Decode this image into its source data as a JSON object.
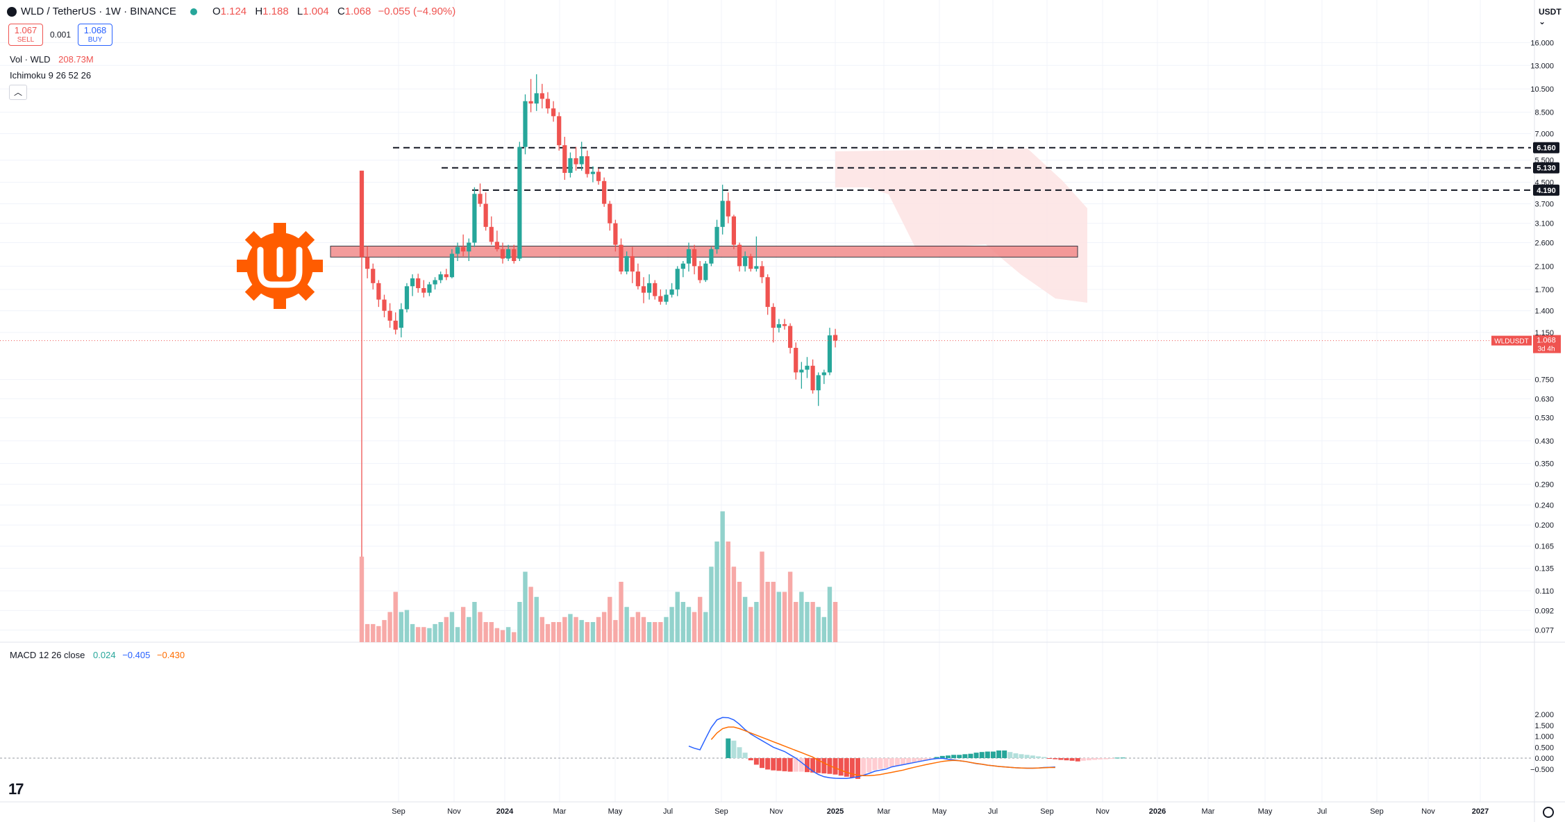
{
  "header": {
    "symbol": "WLD / TetherUS · 1W · BINANCE",
    "open_label": "O",
    "open": "1.124",
    "high_label": "H",
    "high": "1.188",
    "low_label": "L",
    "low": "1.004",
    "close_label": "C",
    "close": "1.068",
    "change": "−0.055 (−4.90%)"
  },
  "trade": {
    "sell_price": "1.067",
    "sell_label": "SELL",
    "spread": "0.001",
    "buy_price": "1.068",
    "buy_label": "BUY"
  },
  "indicators": {
    "volume_label": "Vol · WLD",
    "volume_value": "208.73M",
    "ichimoku_label": "Ichimoku 9 26 52 26",
    "macd_label": "MACD 12 26 close",
    "macd_hist": "0.024",
    "macd_line": "−0.405",
    "macd_signal": "−0.430"
  },
  "currency": "USDT",
  "colors": {
    "up": "#26a69a",
    "down": "#ef5350",
    "volume_up": "#92d2cc",
    "volume_down": "#f7a9a7",
    "macd_line": "#2962ff",
    "signal_line": "#ff6d00",
    "zone_fill": "#f28b8b",
    "cloud": "#fde3e3",
    "logo": "#ff5c00"
  },
  "icons": [
    "symbol-icon",
    "market-status-dot",
    "collapse-chevron-icon",
    "tradingview-logo-icon",
    "settings-gear-icon",
    "worldcoin-logo-icon"
  ],
  "chart_data": {
    "type": "candlestick",
    "symbol": "WLDUSDT",
    "last_price_label": "WLDUSDT",
    "last_price": "1.068",
    "countdown": "3d 4h",
    "scale": "log",
    "y_ticks": [
      "16.000",
      "13.000",
      "10.500",
      "8.500",
      "7.000",
      "5.500",
      "4.500",
      "3.700",
      "3.100",
      "2.600",
      "2.100",
      "1.700",
      "1.400",
      "1.150",
      "0.750",
      "0.630",
      "0.530",
      "0.430",
      "0.350",
      "0.290",
      "0.240",
      "0.200",
      "0.165",
      "0.135",
      "0.110",
      "0.092",
      "0.077"
    ],
    "x_ticks": [
      "Sep",
      "Nov",
      "2024",
      "Mar",
      "May",
      "Jul",
      "Sep",
      "Nov",
      "2025",
      "Mar",
      "May",
      "Jul",
      "Sep",
      "Nov",
      "2026",
      "Mar",
      "May",
      "Jul",
      "Sep",
      "Nov",
      "2027"
    ],
    "levels": [
      {
        "label": "6.160",
        "value": 6.16
      },
      {
        "label": "5.130",
        "value": 5.13
      },
      {
        "label": "4.190",
        "value": 4.19
      }
    ],
    "zone": {
      "low": 2.28,
      "high": 2.52
    },
    "candles": [
      [
        5.0,
        5.0,
        0.15,
        2.28
      ],
      [
        2.28,
        2.52,
        1.88,
        2.05
      ],
      [
        2.05,
        2.15,
        1.7,
        1.8
      ],
      [
        1.8,
        1.85,
        1.45,
        1.55
      ],
      [
        1.55,
        1.62,
        1.32,
        1.4
      ],
      [
        1.4,
        1.5,
        1.2,
        1.28
      ],
      [
        1.28,
        1.38,
        1.13,
        1.18
      ],
      [
        1.2,
        1.5,
        1.1,
        1.42
      ],
      [
        1.42,
        1.8,
        1.38,
        1.75
      ],
      [
        1.75,
        1.95,
        1.6,
        1.88
      ],
      [
        1.88,
        1.96,
        1.65,
        1.72
      ],
      [
        1.72,
        1.85,
        1.58,
        1.65
      ],
      [
        1.65,
        1.82,
        1.6,
        1.78
      ],
      [
        1.78,
        1.9,
        1.7,
        1.85
      ],
      [
        1.85,
        2.0,
        1.8,
        1.95
      ],
      [
        1.95,
        2.05,
        1.85,
        1.9
      ],
      [
        1.9,
        2.45,
        1.88,
        2.35
      ],
      [
        2.35,
        2.6,
        2.2,
        2.5
      ],
      [
        2.5,
        2.8,
        2.3,
        2.4
      ],
      [
        2.4,
        2.7,
        2.2,
        2.6
      ],
      [
        2.6,
        4.3,
        2.5,
        4.05
      ],
      [
        4.05,
        4.45,
        3.6,
        3.7
      ],
      [
        3.7,
        4.1,
        2.9,
        3.0
      ],
      [
        3.0,
        3.3,
        2.55,
        2.62
      ],
      [
        2.62,
        2.9,
        2.4,
        2.45
      ],
      [
        2.45,
        2.6,
        2.15,
        2.25
      ],
      [
        2.25,
        2.55,
        2.2,
        2.45
      ],
      [
        2.45,
        2.55,
        2.15,
        2.2
      ],
      [
        2.25,
        6.5,
        2.2,
        6.2
      ],
      [
        6.2,
        10.0,
        5.8,
        9.4
      ],
      [
        9.4,
        11.5,
        8.5,
        9.2
      ],
      [
        9.2,
        12.0,
        8.6,
        10.1
      ],
      [
        10.1,
        11.0,
        8.8,
        9.6
      ],
      [
        9.6,
        10.2,
        8.4,
        8.8
      ],
      [
        8.8,
        9.4,
        7.8,
        8.2
      ],
      [
        8.2,
        8.5,
        6.0,
        6.3
      ],
      [
        6.3,
        6.8,
        4.6,
        4.9
      ],
      [
        4.9,
        5.9,
        4.7,
        5.6
      ],
      [
        5.6,
        6.2,
        5.0,
        5.3
      ],
      [
        5.3,
        6.5,
        5.0,
        5.7
      ],
      [
        5.7,
        6.0,
        4.7,
        4.85
      ],
      [
        4.85,
        5.2,
        4.5,
        4.95
      ],
      [
        4.95,
        5.1,
        4.4,
        4.55
      ],
      [
        4.55,
        4.7,
        3.6,
        3.7
      ],
      [
        3.7,
        3.8,
        2.9,
        3.1
      ],
      [
        3.1,
        3.2,
        2.4,
        2.55
      ],
      [
        2.55,
        2.7,
        1.95,
        2.0
      ],
      [
        2.0,
        2.4,
        1.95,
        2.3
      ],
      [
        2.3,
        2.5,
        1.8,
        2.0
      ],
      [
        2.0,
        2.15,
        1.7,
        1.75
      ],
      [
        1.75,
        1.9,
        1.5,
        1.65
      ],
      [
        1.65,
        1.95,
        1.55,
        1.8
      ],
      [
        1.8,
        1.85,
        1.55,
        1.6
      ],
      [
        1.6,
        1.7,
        1.48,
        1.52
      ],
      [
        1.52,
        1.7,
        1.48,
        1.62
      ],
      [
        1.62,
        1.8,
        1.58,
        1.7
      ],
      [
        1.7,
        2.1,
        1.6,
        2.05
      ],
      [
        2.05,
        2.2,
        1.9,
        2.15
      ],
      [
        2.15,
        2.6,
        2.0,
        2.45
      ],
      [
        2.45,
        2.55,
        1.95,
        2.1
      ],
      [
        2.1,
        2.2,
        1.8,
        1.85
      ],
      [
        1.85,
        2.2,
        1.82,
        2.15
      ],
      [
        2.15,
        2.5,
        2.1,
        2.45
      ],
      [
        2.45,
        3.2,
        2.35,
        3.0
      ],
      [
        3.0,
        4.4,
        2.8,
        3.8
      ],
      [
        3.8,
        4.1,
        3.1,
        3.3
      ],
      [
        3.3,
        3.35,
        2.45,
        2.55
      ],
      [
        2.55,
        2.6,
        2.0,
        2.1
      ],
      [
        2.1,
        2.4,
        2.0,
        2.3
      ],
      [
        2.3,
        2.35,
        2.0,
        2.05
      ],
      [
        2.05,
        2.75,
        2.0,
        2.1
      ],
      [
        2.1,
        2.2,
        1.8,
        1.9
      ],
      [
        1.9,
        1.95,
        1.35,
        1.45
      ],
      [
        1.45,
        1.5,
        1.05,
        1.2
      ],
      [
        1.2,
        1.3,
        1.15,
        1.24
      ],
      [
        1.24,
        1.3,
        1.18,
        1.22
      ],
      [
        1.22,
        1.25,
        0.95,
        1.0
      ],
      [
        1.0,
        1.05,
        0.75,
        0.8
      ],
      [
        0.8,
        0.88,
        0.69,
        0.82
      ],
      [
        0.82,
        0.92,
        0.76,
        0.85
      ],
      [
        0.85,
        0.9,
        0.66,
        0.68
      ],
      [
        0.68,
        0.8,
        0.59,
        0.78
      ],
      [
        0.78,
        0.82,
        0.72,
        0.8
      ],
      [
        0.8,
        1.2,
        0.78,
        1.12
      ],
      [
        1.124,
        1.188,
        1.004,
        1.068
      ]
    ],
    "volume": [
      0.85,
      0.18,
      0.18,
      0.16,
      0.22,
      0.3,
      0.5,
      0.3,
      0.32,
      0.18,
      0.15,
      0.15,
      0.14,
      0.18,
      0.2,
      0.25,
      0.3,
      0.15,
      0.35,
      0.25,
      0.4,
      0.3,
      0.2,
      0.2,
      0.14,
      0.12,
      0.15,
      0.1,
      0.4,
      0.7,
      0.55,
      0.45,
      0.25,
      0.18,
      0.2,
      0.2,
      0.25,
      0.28,
      0.25,
      0.22,
      0.2,
      0.2,
      0.25,
      0.3,
      0.45,
      0.22,
      0.6,
      0.35,
      0.25,
      0.3,
      0.25,
      0.2,
      0.2,
      0.2,
      0.25,
      0.35,
      0.5,
      0.4,
      0.35,
      0.3,
      0.45,
      0.3,
      0.75,
      1.0,
      1.3,
      1.0,
      0.75,
      0.6,
      0.45,
      0.35,
      0.4,
      0.9,
      0.6,
      0.6,
      0.5,
      0.5,
      0.7,
      0.4,
      0.5,
      0.4,
      0.4,
      0.35,
      0.25,
      0.55,
      0.4
    ],
    "macd_hist": [
      0.9,
      0.8,
      0.5,
      0.25,
      -0.1,
      -0.3,
      -0.45,
      -0.52,
      -0.56,
      -0.58,
      -0.6,
      -0.62,
      -0.62,
      -0.62,
      -0.64,
      -0.66,
      -0.68,
      -0.7,
      -0.72,
      -0.75,
      -0.8,
      -0.85,
      -0.9,
      -0.95,
      -0.8,
      -0.65,
      -0.55,
      -0.5,
      -0.45,
      -0.4,
      -0.35,
      -0.3,
      -0.25,
      -0.2,
      -0.15,
      -0.1,
      -0.05,
      0.05,
      0.1,
      0.12,
      0.15,
      0.15,
      0.18,
      0.2,
      0.25,
      0.28,
      0.3,
      0.3,
      0.35,
      0.35,
      0.28,
      0.22,
      0.18,
      0.15,
      0.12,
      0.08,
      0.05,
      -0.02,
      -0.05,
      -0.08,
      -0.1,
      -0.12,
      -0.15,
      -0.12,
      -0.1,
      -0.08,
      -0.06,
      -0.05,
      -0.03,
      0.02,
      0.024
    ],
    "macd_line": [
      0.55,
      0.45,
      0.38,
      0.9,
      1.4,
      1.75,
      1.86,
      1.85,
      1.75,
      1.55,
      1.3,
      1.1,
      0.95,
      0.8,
      0.65,
      0.5,
      0.4,
      0.3,
      0.15,
      0.0,
      -0.2,
      -0.4,
      -0.6,
      -0.75,
      -0.85,
      -0.9,
      -0.92,
      -0.93,
      -0.93,
      -0.9,
      -0.85,
      -0.78,
      -0.7,
      -0.6,
      -0.55,
      -0.5,
      -0.4,
      -0.35,
      -0.3,
      -0.25,
      -0.2,
      -0.15,
      -0.1,
      -0.05,
      -0.02,
      -0.01,
      -0.05,
      -0.08,
      -0.12,
      -0.15,
      -0.2,
      -0.25,
      -0.28,
      -0.32,
      -0.35,
      -0.38,
      -0.4,
      -0.42,
      -0.44,
      -0.45,
      -0.46,
      -0.46,
      -0.45,
      -0.43,
      -0.42,
      -0.405
    ],
    "signal_line": [
      null,
      null,
      null,
      null,
      0.85,
      1.15,
      1.35,
      1.42,
      1.42,
      1.35,
      1.25,
      1.15,
      1.05,
      0.95,
      0.85,
      0.75,
      0.65,
      0.55,
      0.45,
      0.35,
      0.25,
      0.15,
      0.05,
      -0.1,
      -0.22,
      -0.35,
      -0.45,
      -0.55,
      -0.65,
      -0.72,
      -0.78,
      -0.8,
      -0.8,
      -0.78,
      -0.75,
      -0.7,
      -0.65,
      -0.6,
      -0.55,
      -0.48,
      -0.42,
      -0.36,
      -0.3,
      -0.25,
      -0.2,
      -0.15,
      -0.12,
      -0.1,
      -0.12,
      -0.15,
      -0.2,
      -0.24,
      -0.28,
      -0.32,
      -0.35,
      -0.38,
      -0.4,
      -0.42,
      -0.44,
      -0.45,
      -0.46,
      -0.46,
      -0.45,
      -0.44,
      -0.43,
      -0.43
    ],
    "macd_ticks": [
      "2.000",
      "1.500",
      "1.000",
      "0.500",
      "0.000",
      "−0.500"
    ]
  }
}
